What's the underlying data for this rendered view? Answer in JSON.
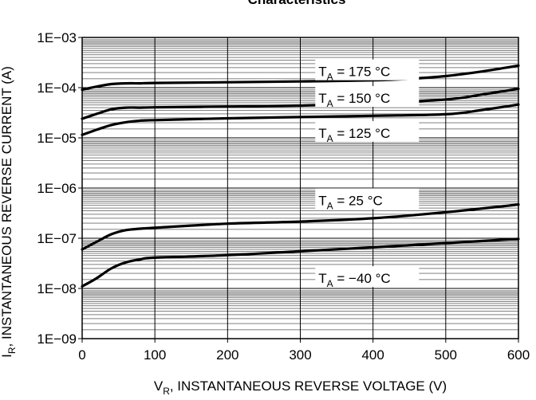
{
  "chart_data": {
    "type": "line",
    "title": "Characteristics",
    "xlabel": {
      "main": "V",
      "sub": "R",
      "rest": ", INSTANTANEOUS REVERSE VOLTAGE (V)"
    },
    "ylabel": {
      "main": "I",
      "sub": "R",
      "rest": ", INSTANTANEOUS REVERSE CURRENT (A)"
    },
    "xlim": [
      0,
      600
    ],
    "ylim": [
      1e-09,
      0.001
    ],
    "y_scale": "log",
    "grid": true,
    "x_ticks": [
      {
        "value": 0,
        "label": "0"
      },
      {
        "value": 100,
        "label": "100"
      },
      {
        "value": 200,
        "label": "200"
      },
      {
        "value": 300,
        "label": "300"
      },
      {
        "value": 400,
        "label": "400"
      },
      {
        "value": 500,
        "label": "500"
      },
      {
        "value": 600,
        "label": "600"
      }
    ],
    "y_ticks": [
      {
        "value": 0.001,
        "label": "1E−03"
      },
      {
        "value": 0.0001,
        "label": "1E−04"
      },
      {
        "value": 1e-05,
        "label": "1E−05"
      },
      {
        "value": 1e-06,
        "label": "1E−06"
      },
      {
        "value": 1e-07,
        "label": "1E−07"
      },
      {
        "value": 1e-08,
        "label": "1E−08"
      },
      {
        "value": 1e-09,
        "label": "1E−09"
      }
    ],
    "series": [
      {
        "label": {
          "main": "T",
          "sub": "A",
          "rest": " = 175 °C"
        },
        "label_at": {
          "x": 325,
          "y": 0.00021
        },
        "x": [
          0,
          20,
          40,
          60,
          80,
          100,
          200,
          300,
          400,
          450,
          500,
          550,
          600
        ],
        "y": [
          9.1e-05,
          0.000105,
          0.000118,
          0.000122,
          0.000122,
          0.000124,
          0.000128,
          0.000133,
          0.00014,
          0.00015,
          0.00017,
          0.00021,
          0.000275
        ]
      },
      {
        "label": {
          "main": "T",
          "sub": "A",
          "rest": " = 150 °C"
        },
        "label_at": {
          "x": 325,
          "y": 6.2e-05
        },
        "x": [
          0,
          20,
          40,
          60,
          80,
          100,
          200,
          300,
          400,
          500,
          550,
          600
        ],
        "y": [
          2.4e-05,
          3e-05,
          3.7e-05,
          4e-05,
          4e-05,
          4.05e-05,
          4.2e-05,
          4.4e-05,
          4.9e-05,
          5.8e-05,
          7.3e-05,
          9.5e-05
        ]
      },
      {
        "label": {
          "main": "T",
          "sub": "A",
          "rest": " = 125 °C"
        },
        "label_at": {
          "x": 325,
          "y": 1.25e-05
        },
        "x": [
          0,
          20,
          40,
          60,
          80,
          100,
          200,
          300,
          400,
          500,
          550,
          600
        ],
        "y": [
          1.15e-05,
          1.45e-05,
          1.8e-05,
          2.05e-05,
          2.2e-05,
          2.25e-05,
          2.45e-05,
          2.6e-05,
          2.75e-05,
          2.95e-05,
          3.6e-05,
          4.6e-05
        ]
      },
      {
        "label": {
          "main": "T",
          "sub": "A",
          "rest": " = 25 °C"
        },
        "label_at": {
          "x": 325,
          "y": 5.7e-07
        },
        "x": [
          0,
          20,
          40,
          60,
          80,
          100,
          200,
          300,
          400,
          500,
          600
        ],
        "y": [
          6e-08,
          8.5e-08,
          1.2e-07,
          1.45e-07,
          1.55e-07,
          1.62e-07,
          1.95e-07,
          2.15e-07,
          2.5e-07,
          3.3e-07,
          4.7e-07
        ]
      },
      {
        "label": {
          "main": "T",
          "sub": "A",
          "rest": " = −40 °C"
        },
        "label_at": {
          "x": 325,
          "y": 1.6e-08
        },
        "x": [
          0,
          20,
          40,
          60,
          80,
          100,
          200,
          300,
          400,
          500,
          600
        ],
        "y": [
          1.1e-08,
          1.6e-08,
          2.5e-08,
          3.3e-08,
          3.8e-08,
          4.1e-08,
          4.6e-08,
          5.5e-08,
          6.6e-08,
          8e-08,
          9.7e-08
        ]
      }
    ]
  }
}
